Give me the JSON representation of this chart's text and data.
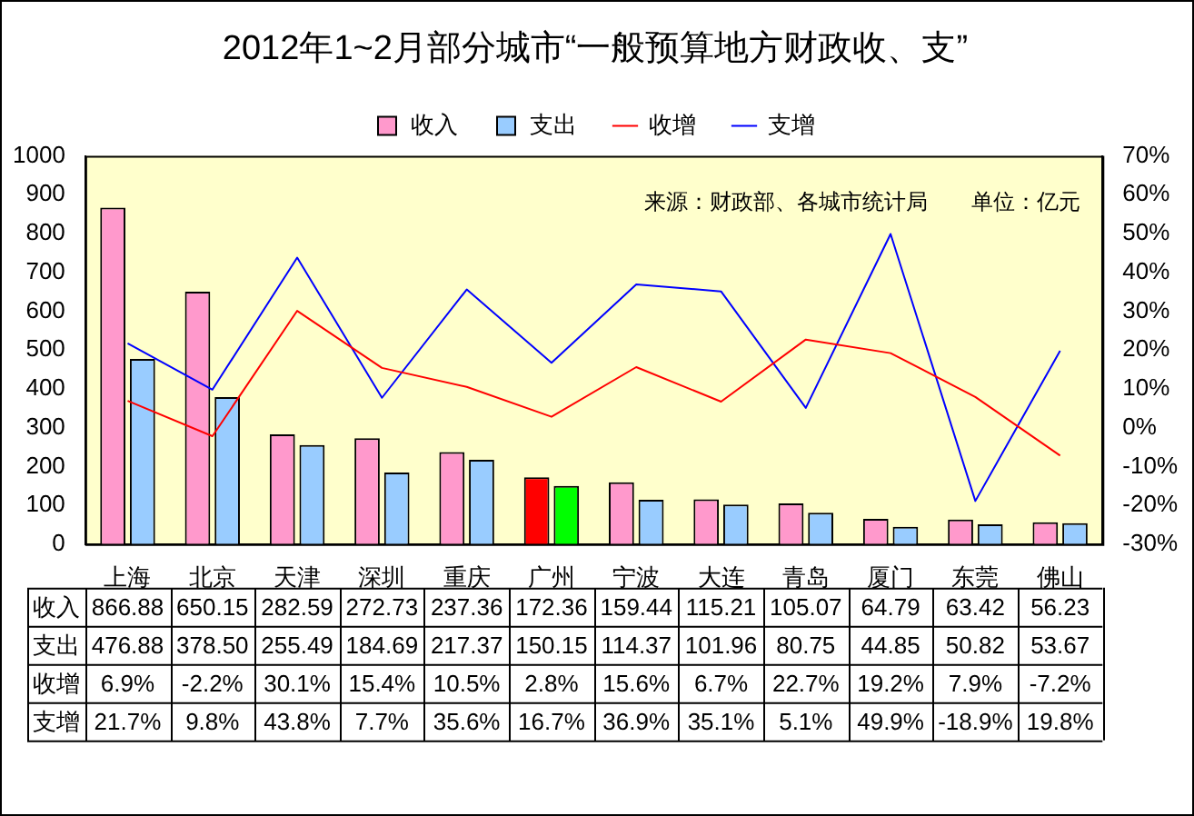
{
  "chart_data": {
    "type": "bar",
    "title": "2012年1~2月部分城市“一般预算地方财政收、支”",
    "categories": [
      "上海",
      "北京",
      "天津",
      "深圳",
      "重庆",
      "广州",
      "宁波",
      "大连",
      "青岛",
      "厦门",
      "东莞",
      "佛山"
    ],
    "series": [
      {
        "name": "收入",
        "color": "#ff99cc",
        "colors": [
          "#ff99cc",
          "#ff99cc",
          "#ff99cc",
          "#ff99cc",
          "#ff99cc",
          "#ff0000",
          "#ff99cc",
          "#ff99cc",
          "#ff99cc",
          "#ff99cc",
          "#ff99cc",
          "#ff99cc"
        ],
        "values": [
          866.88,
          650.15,
          282.59,
          272.73,
          237.36,
          172.36,
          159.44,
          115.21,
          105.07,
          64.79,
          63.42,
          56.23
        ],
        "value_labels": [
          "866.88",
          "650.15",
          "282.59",
          "272.73",
          "237.36",
          "172.36",
          "159.44",
          "115.21",
          "105.07",
          "64.79",
          "63.42",
          "56.23"
        ]
      },
      {
        "name": "支出",
        "color": "#99ccff",
        "colors": [
          "#99ccff",
          "#99ccff",
          "#99ccff",
          "#99ccff",
          "#99ccff",
          "#00ff00",
          "#99ccff",
          "#99ccff",
          "#99ccff",
          "#99ccff",
          "#99ccff",
          "#99ccff"
        ],
        "values": [
          476.88,
          378.5,
          255.49,
          184.69,
          217.37,
          150.15,
          114.37,
          101.96,
          80.75,
          44.85,
          50.82,
          53.67
        ],
        "value_labels": [
          "476.88",
          "378.50",
          "255.49",
          "184.69",
          "217.37",
          "150.15",
          "114.37",
          "101.96",
          "80.75",
          "44.85",
          "50.82",
          "53.67"
        ]
      },
      {
        "name": "收增",
        "type": "line",
        "axis": "y2",
        "color": "#ff0000",
        "values": [
          6.9,
          -2.2,
          30.1,
          15.4,
          10.5,
          2.8,
          15.6,
          6.7,
          22.7,
          19.2,
          7.9,
          -7.2
        ],
        "value_labels": [
          "6.9%",
          "-2.2%",
          "30.1%",
          "15.4%",
          "10.5%",
          "2.8%",
          "15.6%",
          "6.7%",
          "22.7%",
          "19.2%",
          "7.9%",
          "-7.2%"
        ]
      },
      {
        "name": "支增",
        "type": "line",
        "axis": "y2",
        "color": "#0000ff",
        "values": [
          21.7,
          9.8,
          43.8,
          7.7,
          35.6,
          16.7,
          36.9,
          35.1,
          5.1,
          49.9,
          -18.9,
          19.8
        ],
        "value_labels": [
          "21.7%",
          "9.8%",
          "43.8%",
          "7.7%",
          "35.6%",
          "16.7%",
          "36.9%",
          "35.1%",
          "5.1%",
          "49.9%",
          "-18.9%",
          "19.8%"
        ]
      }
    ],
    "ylim": [
      0,
      1000
    ],
    "yticks": [
      0,
      100,
      200,
      300,
      400,
      500,
      600,
      700,
      800,
      900,
      1000
    ],
    "y2lim": [
      -30,
      70
    ],
    "y2ticks": [
      {
        "value": -30,
        "label": "-30%"
      },
      {
        "value": -20,
        "label": "-20%"
      },
      {
        "value": -10,
        "label": "-10%"
      },
      {
        "value": 0,
        "label": "0%"
      },
      {
        "value": 10,
        "label": "10%"
      },
      {
        "value": 20,
        "label": "20%"
      },
      {
        "value": 30,
        "label": "30%"
      },
      {
        "value": 40,
        "label": "40%"
      },
      {
        "value": 50,
        "label": "50%"
      },
      {
        "value": 60,
        "label": "60%"
      },
      {
        "value": 70,
        "label": "70%"
      }
    ],
    "legend": "top",
    "marker": "none",
    "line_style": "solid",
    "annotations": [
      "来源：财政部、各城市统计局",
      "单位：亿元"
    ]
  }
}
